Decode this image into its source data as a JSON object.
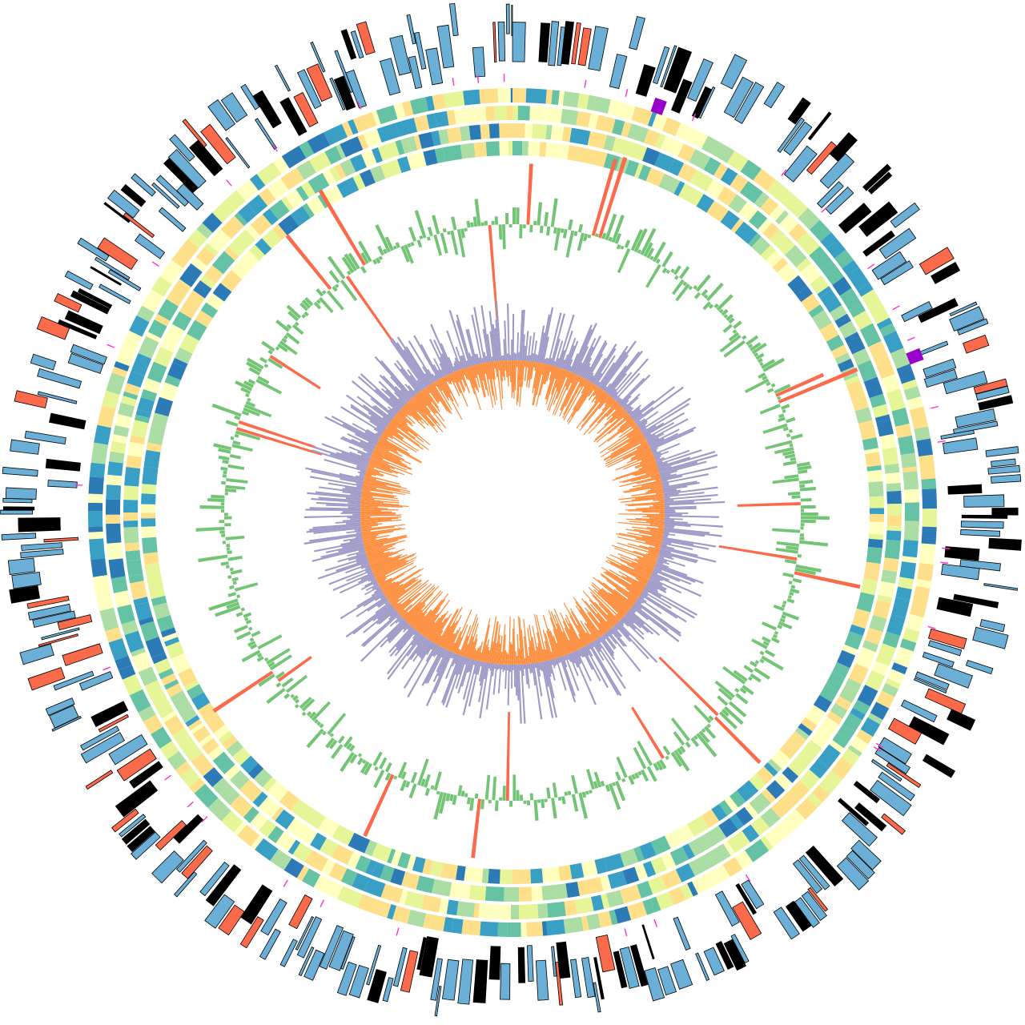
{
  "figure": {
    "kind": "circular genome map",
    "text_labels": []
  },
  "colors": {
    "background": "#ffffff",
    "gene_fill": "#6baed6",
    "gene_highlight": "#fb6a4a",
    "gene_outline": "#000000",
    "magenta_tick": "#ff33cc",
    "purple_block": "#9900cc",
    "heatmap_palette": [
      "#2c7bb6",
      "#3a9fc4",
      "#66c2a5",
      "#abdda4",
      "#e6f598",
      "#ffffbf",
      "#fee08b"
    ],
    "skew_positive": "#74c476",
    "skew_negative": "#fb6a4a",
    "gc_outer": "#9e9ac8",
    "gc_inner": "#fd8d3c"
  },
  "tracks": [
    {
      "id": "outer-gene-track",
      "type": "gene blocks"
    },
    {
      "id": "feature-ticks",
      "type": "markers"
    },
    {
      "id": "heatmap-ring-1",
      "type": "heatmap"
    },
    {
      "id": "heatmap-ring-2",
      "type": "heatmap"
    },
    {
      "id": "heatmap-ring-3",
      "type": "heatmap"
    },
    {
      "id": "heatmap-ring-4",
      "type": "heatmap"
    },
    {
      "id": "skew-histogram",
      "type": "histogram"
    },
    {
      "id": "gc-outer-histogram",
      "type": "histogram"
    },
    {
      "id": "gc-inner-histogram",
      "type": "histogram"
    }
  ]
}
